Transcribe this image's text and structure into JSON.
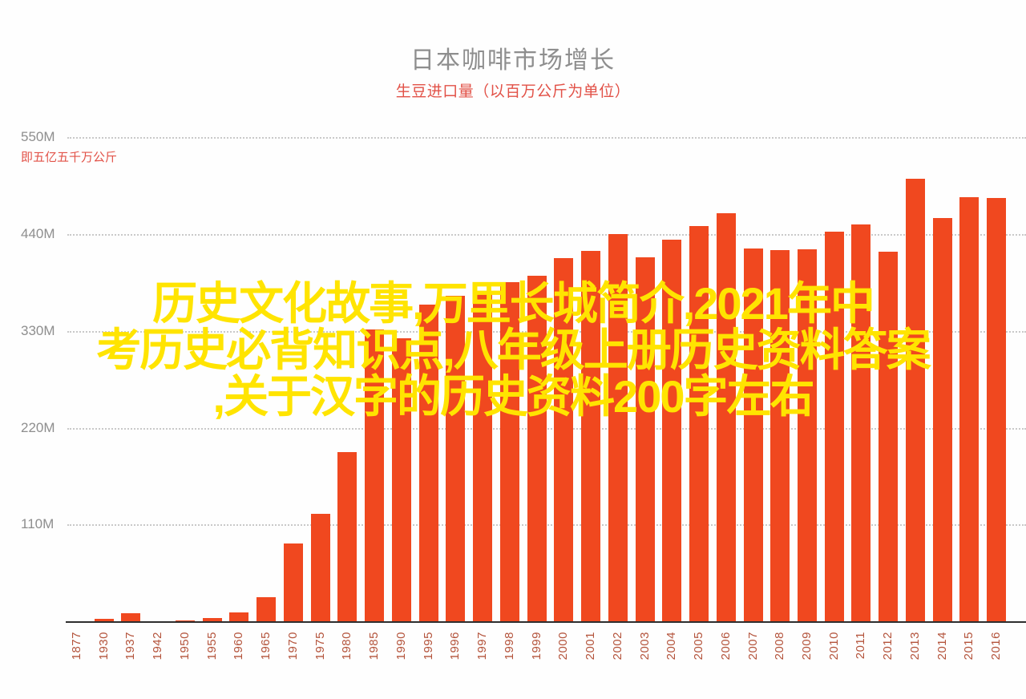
{
  "header": {
    "title": "日本咖啡市场增长",
    "subtitle": "生豆进口量（以百万公斤为单位）"
  },
  "watermark": {
    "color": "#ffe400",
    "lines": [
      "历史文化故事,万里长城简介,2021年中",
      "考历史必背知识点,八年级上册历史资料答案",
      ",关于汉字的历史资料200字左右"
    ]
  },
  "chart_data": {
    "type": "bar",
    "title": "日本咖啡市场增长",
    "subtitle": "生豆进口量（以百万公斤为单位）",
    "unit": "百万公斤 (M kg)",
    "bar_color": "#f0481f",
    "grid": "horizontal dotted",
    "legend": "none",
    "ylim": [
      0,
      605
    ],
    "ytick_labels": [
      "550M",
      "440M",
      "330M",
      "220M",
      "110M"
    ],
    "ytick_values": [
      550,
      440,
      330,
      220,
      110
    ],
    "y_annotation": "即五亿五千万公斤",
    "categories": [
      "1877",
      "1930",
      "1937",
      "1942",
      "1950",
      "1955",
      "1960",
      "1965",
      "1970",
      "1975",
      "1980",
      "1985",
      "1990",
      "1995",
      "1996",
      "1997",
      "1998",
      "1999",
      "2000",
      "2001",
      "2002",
      "2003",
      "2004",
      "2005",
      "2006",
      "2007",
      "2008",
      "2009",
      "2010",
      "2011",
      "2012",
      "2013",
      "2014",
      "2015",
      "2016"
    ],
    "values": [
      0.3,
      3,
      9,
      0.3,
      0.8,
      4,
      10,
      27,
      88,
      122,
      192,
      332,
      322,
      360,
      370,
      375,
      385,
      393,
      413,
      421,
      440,
      414,
      434,
      449,
      464,
      424,
      422,
      423,
      443,
      451,
      420,
      503,
      458,
      482,
      481
    ]
  }
}
